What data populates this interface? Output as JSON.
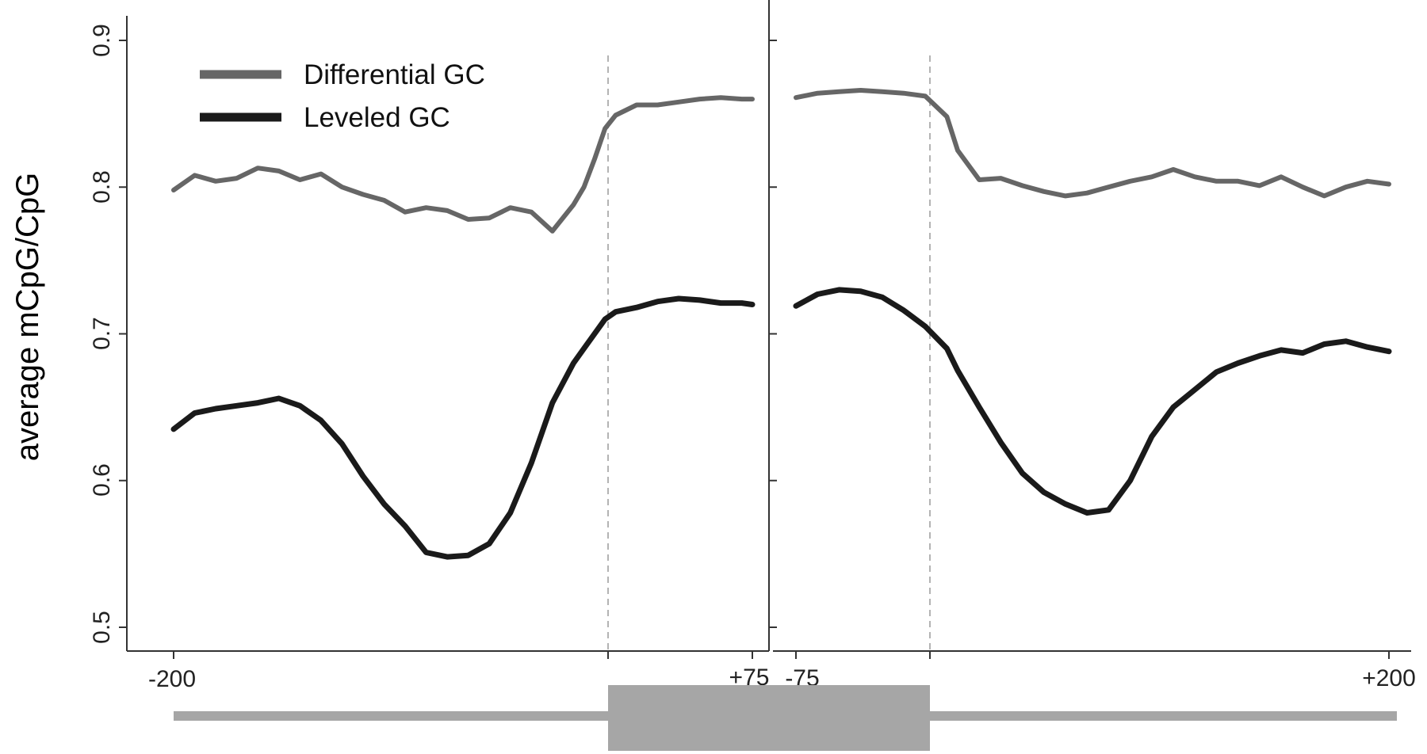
{
  "chart_data": {
    "type": "line",
    "ylabel": "average mCpG/CpG",
    "ylim": [
      0.5,
      0.9
    ],
    "yticks": [
      "0.5",
      "0.6",
      "0.7",
      "0.8",
      "0.9"
    ],
    "grid": false,
    "legend_position": "top-left",
    "colors": {
      "Differential GC": "#666666",
      "Leveled GC": "#1a1a1a",
      "gene_model": "#a6a6a6"
    },
    "panels": [
      {
        "xlim": [
          -200,
          75
        ],
        "xtick_labels": [
          "-200",
          "+75"
        ],
        "series": [
          {
            "name": "Differential GC",
            "x": [
              -200,
              -190,
              -180,
              -170,
              -160,
              -150,
              -140,
              -130,
              -120,
              -110,
              -100,
              -90,
              -80,
              -70,
              -60,
              -50,
              -40,
              -30,
              -20,
              -10,
              -5,
              0,
              5,
              10,
              20,
              30,
              40,
              50,
              60,
              70,
              75
            ],
            "values": [
              0.798,
              0.808,
              0.804,
              0.806,
              0.813,
              0.811,
              0.805,
              0.809,
              0.8,
              0.795,
              0.791,
              0.783,
              0.786,
              0.784,
              0.778,
              0.779,
              0.786,
              0.783,
              0.77,
              0.788,
              0.8,
              0.819,
              0.84,
              0.849,
              0.856,
              0.856,
              0.858,
              0.86,
              0.861,
              0.86,
              0.86
            ]
          },
          {
            "name": "Leveled GC",
            "x": [
              -200,
              -190,
              -180,
              -170,
              -160,
              -150,
              -140,
              -130,
              -120,
              -110,
              -100,
              -90,
              -80,
              -70,
              -60,
              -50,
              -40,
              -30,
              -20,
              -10,
              -5,
              0,
              5,
              10,
              20,
              30,
              40,
              50,
              60,
              70,
              75
            ],
            "values": [
              0.635,
              0.646,
              0.649,
              0.651,
              0.653,
              0.656,
              0.651,
              0.641,
              0.625,
              0.603,
              0.584,
              0.569,
              0.551,
              0.548,
              0.549,
              0.557,
              0.578,
              0.612,
              0.653,
              0.68,
              0.69,
              0.7,
              0.71,
              0.715,
              0.718,
              0.722,
              0.724,
              0.723,
              0.721,
              0.721,
              0.72
            ]
          }
        ]
      },
      {
        "xlim": [
          -75,
          200
        ],
        "xtick_labels": [
          "-75",
          "+200"
        ],
        "series": [
          {
            "name": "Differential GC",
            "x": [
              -75,
              -65,
              -55,
              -45,
              -35,
              -25,
              -15,
              -5,
              0,
              10,
              20,
              30,
              40,
              50,
              60,
              70,
              80,
              90,
              100,
              110,
              120,
              130,
              140,
              150,
              160,
              170,
              180,
              190,
              200
            ],
            "values": [
              0.861,
              0.864,
              0.865,
              0.866,
              0.865,
              0.864,
              0.862,
              0.848,
              0.825,
              0.805,
              0.806,
              0.801,
              0.797,
              0.794,
              0.796,
              0.8,
              0.804,
              0.807,
              0.812,
              0.807,
              0.804,
              0.804,
              0.801,
              0.807,
              0.8,
              0.794,
              0.8,
              0.804,
              0.802
            ]
          },
          {
            "name": "Leveled GC",
            "x": [
              -75,
              -65,
              -55,
              -45,
              -35,
              -25,
              -15,
              -5,
              0,
              10,
              20,
              30,
              40,
              50,
              60,
              70,
              80,
              90,
              100,
              110,
              120,
              130,
              140,
              150,
              160,
              170,
              180,
              190,
              200
            ],
            "values": [
              0.719,
              0.727,
              0.73,
              0.729,
              0.725,
              0.716,
              0.705,
              0.69,
              0.675,
              0.65,
              0.626,
              0.605,
              0.592,
              0.584,
              0.578,
              0.58,
              0.6,
              0.63,
              0.65,
              0.662,
              0.674,
              0.68,
              0.685,
              0.689,
              0.687,
              0.693,
              0.695,
              0.691,
              0.688
            ]
          }
        ]
      }
    ],
    "gene_model": {
      "coding_start": 0,
      "coding_end": 0
    }
  }
}
